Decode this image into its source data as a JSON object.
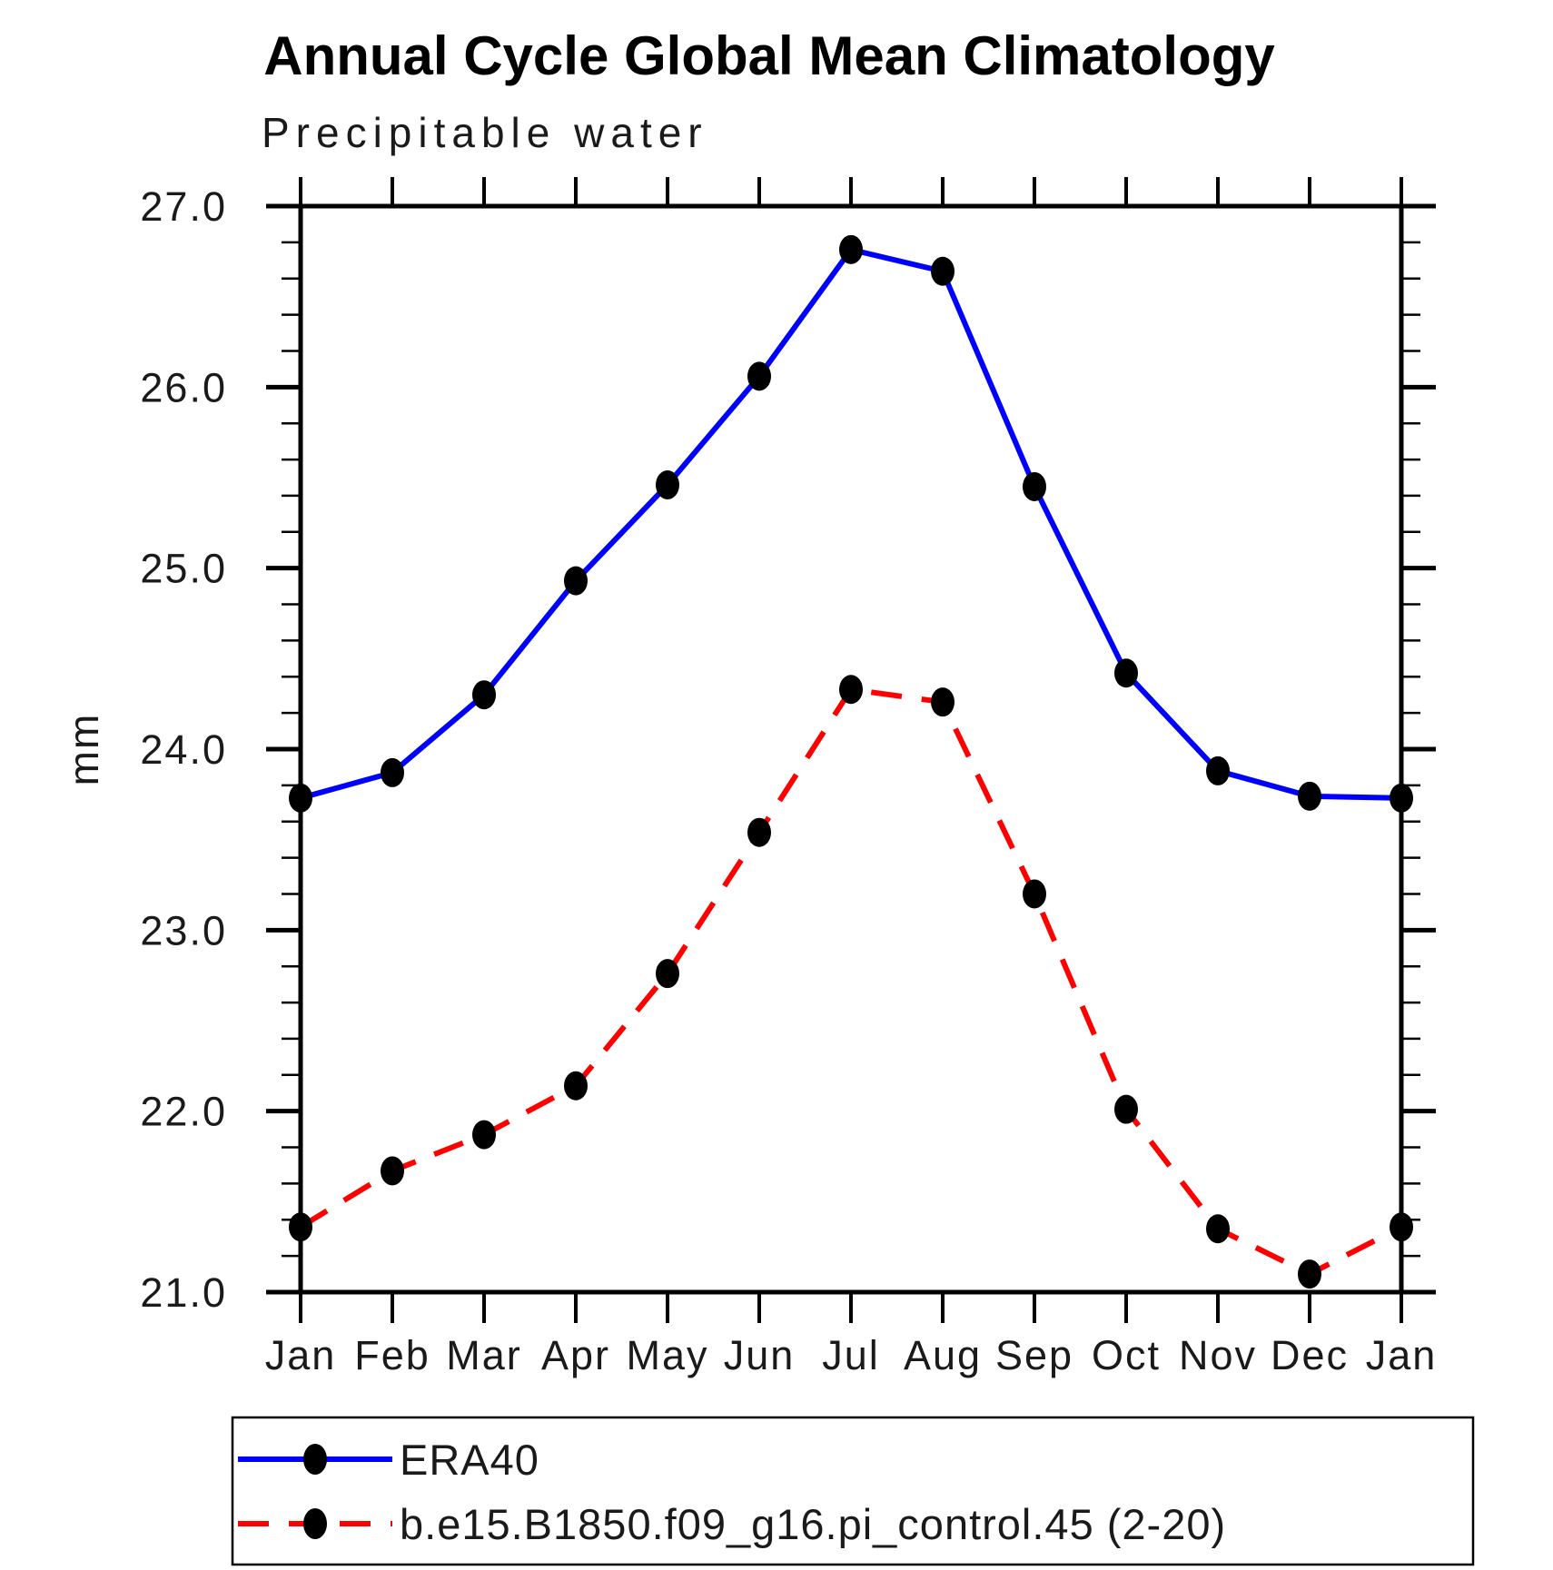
{
  "chart_data": {
    "type": "line",
    "title": "Annual Cycle Global Mean Climatology",
    "subtitle": "Precipitable water",
    "ylabel": "mm",
    "xlabel": "",
    "categories": [
      "Jan",
      "Feb",
      "Mar",
      "Apr",
      "May",
      "Jun",
      "Jul",
      "Aug",
      "Sep",
      "Oct",
      "Nov",
      "Dec",
      "Jan"
    ],
    "ylim": [
      21.0,
      27.0
    ],
    "y_major_step": 1.0,
    "y_minor_step": 0.2,
    "y_tick_labels": [
      "21.0",
      "22.0",
      "23.0",
      "24.0",
      "25.0",
      "26.0",
      "27.0"
    ],
    "grid": false,
    "frame": "box-with-outward-ticks",
    "legend_position": "bottom-left-box",
    "marker_color": "#000000",
    "series": [
      {
        "name": "ERA40",
        "color": "#0000ff",
        "line_style": "solid",
        "marker": "filled-ellipse",
        "values": [
          23.73,
          23.87,
          24.3,
          24.93,
          25.46,
          26.06,
          26.76,
          26.64,
          25.45,
          24.42,
          23.88,
          23.74,
          23.73
        ]
      },
      {
        "name": "b.e15.B1850.f09_g16.pi_control.45 (2-20)",
        "color": "#ff0000",
        "line_style": "dashed",
        "marker": "filled-ellipse",
        "values": [
          21.36,
          21.67,
          21.87,
          22.14,
          22.76,
          23.54,
          24.33,
          24.26,
          23.2,
          22.01,
          21.35,
          21.1,
          21.36
        ]
      }
    ]
  }
}
